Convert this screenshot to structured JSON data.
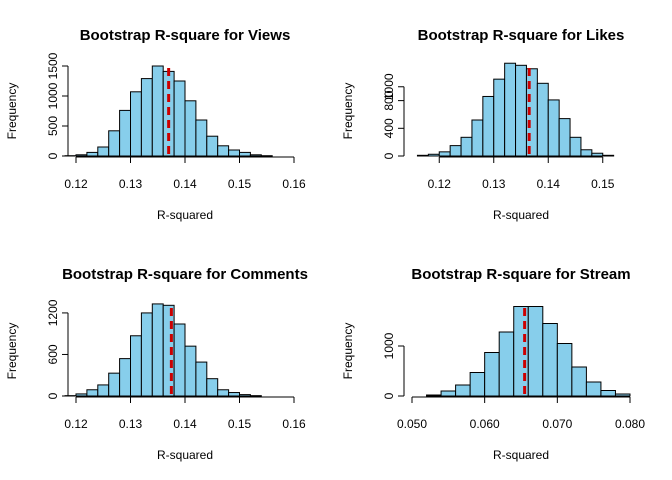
{
  "colors": {
    "bar_fill": "#87CEEB",
    "bar_stroke": "#000000",
    "mean_line": "#CC0000"
  },
  "chart_data": [
    {
      "type": "bar",
      "title": "Bootstrap R-square for Views",
      "xlabel": "R-squared",
      "ylabel": "Frequency",
      "xlim": [
        0.12,
        0.16
      ],
      "ylim": [
        0,
        1500
      ],
      "x_ticks": [
        0.12,
        0.13,
        0.14,
        0.15,
        0.16
      ],
      "x_tick_labels": [
        "0.12",
        "0.13",
        "0.14",
        "0.15",
        "0.16"
      ],
      "y_ticks": [
        0,
        500,
        1000,
        1500
      ],
      "y_tick_labels": [
        "0",
        "500",
        "1000",
        "1500"
      ],
      "bin_width": 0.002,
      "bin_start": 0.116,
      "values": [
        0,
        5,
        20,
        60,
        150,
        420,
        760,
        1070,
        1290,
        1500,
        1410,
        1250,
        920,
        600,
        330,
        170,
        100,
        60,
        20,
        5
      ],
      "mean_line": 0.137,
      "grid": false
    },
    {
      "type": "bar",
      "title": "Bootstrap R-square for Likes",
      "xlabel": "R-squared",
      "ylabel": "Frequency",
      "xlim": [
        0.115,
        0.155
      ],
      "ylim": [
        0,
        1300
      ],
      "x_ticks": [
        0.12,
        0.13,
        0.14,
        0.15
      ],
      "x_tick_labels": [
        "0.12",
        "0.13",
        "0.14",
        "0.15"
      ],
      "y_ticks": [
        0,
        400,
        800,
        1000
      ],
      "y_tick_labels": [
        "0",
        "400",
        "800",
        "1000"
      ],
      "bin_width": 0.002,
      "bin_start": 0.116,
      "values": [
        10,
        25,
        60,
        150,
        270,
        520,
        860,
        1110,
        1340,
        1310,
        1260,
        1050,
        810,
        540,
        270,
        90,
        40,
        10
      ],
      "mean_line": 0.1365,
      "grid": false
    },
    {
      "type": "bar",
      "title": "Bootstrap R-square for Comments",
      "xlabel": "R-squared",
      "ylabel": "Frequency",
      "xlim": [
        0.12,
        0.16
      ],
      "ylim": [
        0,
        1300
      ],
      "x_ticks": [
        0.12,
        0.13,
        0.14,
        0.15,
        0.16
      ],
      "x_tick_labels": [
        "0.12",
        "0.13",
        "0.14",
        "0.15",
        "0.16"
      ],
      "y_ticks": [
        0,
        600,
        1200
      ],
      "y_tick_labels": [
        "0",
        "600",
        "1200"
      ],
      "bin_width": 0.002,
      "bin_start": 0.118,
      "values": [
        5,
        30,
        90,
        160,
        330,
        540,
        870,
        1200,
        1330,
        1310,
        1040,
        720,
        490,
        250,
        90,
        50,
        20,
        5
      ],
      "mean_line": 0.1375,
      "grid": false
    },
    {
      "type": "bar",
      "title": "Bootstrap R-square for Stream",
      "xlabel": "R-squared",
      "ylabel": "Frequency",
      "xlim": [
        0.05,
        0.08
      ],
      "ylim": [
        0,
        1800
      ],
      "x_ticks": [
        0.05,
        0.06,
        0.07,
        0.08
      ],
      "x_tick_labels": [
        "0.050",
        "0.060",
        "0.070",
        "0.080"
      ],
      "y_ticks": [
        0,
        1000
      ],
      "y_tick_labels": [
        "0",
        "1000"
      ],
      "bin_width": 0.002,
      "bin_start": 0.052,
      "values": [
        20,
        100,
        220,
        470,
        870,
        1280,
        1790,
        1790,
        1450,
        1050,
        580,
        280,
        110,
        40
      ],
      "mean_line": 0.0655,
      "grid": false
    }
  ]
}
